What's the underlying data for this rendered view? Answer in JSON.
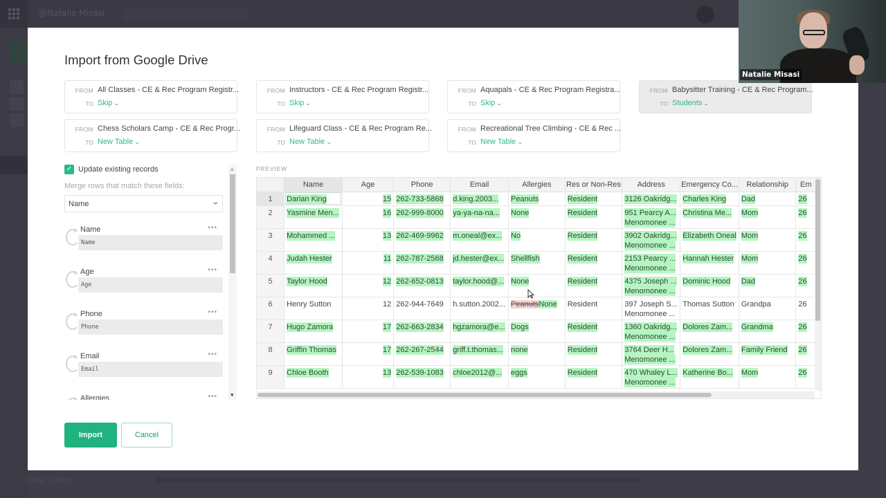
{
  "background": {
    "user_menu": "@Natalie Misasi",
    "help_link": "Help Center"
  },
  "modal": {
    "title": "Import from Google Drive",
    "from_label": "FROM",
    "to_label": "TO",
    "mappings": [
      {
        "from": "All Classes - CE & Rec Program Registr...",
        "to": "Skip",
        "active": false
      },
      {
        "from": "Instructors - CE & Rec Program Registr...",
        "to": "Skip",
        "active": false
      },
      {
        "from": "Aquapals - CE & Rec Program Registra...",
        "to": "Skip",
        "active": false
      },
      {
        "from": "Babysitter Training - CE & Rec Program...",
        "to": "Students",
        "active": true
      },
      {
        "from": "Chess Scholars Camp - CE & Rec Progr...",
        "to": "New Table",
        "active": false
      },
      {
        "from": "Lifeguard Class - CE & Rec Program Re...",
        "to": "New Table",
        "active": false
      },
      {
        "from": "Recreational Tree Climbing - CE & Rec ...",
        "to": "New Table",
        "active": false
      }
    ],
    "options": {
      "update_existing_label": "Update existing records",
      "update_existing_checked": true,
      "merge_label": "Merge rows that match these fields:",
      "merge_field": "Name"
    },
    "field_mappings": [
      {
        "name": "Name",
        "source": "Name"
      },
      {
        "name": "Age",
        "source": "Age"
      },
      {
        "name": "Phone",
        "source": "Phone"
      },
      {
        "name": "Email",
        "source": "Email"
      },
      {
        "name": "Allergies",
        "source": ""
      }
    ],
    "preview": {
      "label": "PREVIEW",
      "columns": [
        "Name",
        "Age",
        "Phone",
        "Email",
        "Allergies",
        "Res or Non-Res",
        "Address",
        "Emergency Co...",
        "Relationship",
        "Em"
      ],
      "rows": [
        {
          "n": "1",
          "name": "Darian King",
          "age": "15",
          "phone": "262-733-5868",
          "email": "d.king.2003...",
          "allergies": "Peanuts",
          "res": "Resident",
          "addr1": "3126 Oakridg...",
          "addr2": "",
          "emergency": "Charles King",
          "relationship": "Dad",
          "em": "26",
          "changed": true
        },
        {
          "n": "2",
          "name": "Yasmine Men...",
          "age": "16",
          "phone": "262-999-8000",
          "email": "ya-ya-na-na...",
          "allergies": "None",
          "res": "Resident",
          "addr1": "951 Pearcy A...",
          "addr2": "Menomonee ...",
          "emergency": "Christina Me...",
          "relationship": "Mom",
          "em": "26",
          "changed": true
        },
        {
          "n": "3",
          "name": "Mohammed ...",
          "age": "13",
          "phone": "262-469-9962",
          "email": "m.oneal@ex...",
          "allergies": "No",
          "res": "Resident",
          "addr1": "3902 Oakridg...",
          "addr2": "Menomonee ...",
          "emergency": "Elizabeth Oneal",
          "relationship": "Mom",
          "em": "26",
          "changed": true
        },
        {
          "n": "4",
          "name": "Judah Hester",
          "age": "11",
          "phone": "262-787-2568",
          "email": "jd.hester@ex...",
          "allergies": "Shellfish",
          "res": "Resident",
          "addr1": "2153 Pearcy ...",
          "addr2": "Menomonee ...",
          "emergency": "Hannah Hester",
          "relationship": "Mom",
          "em": "26",
          "changed": true
        },
        {
          "n": "5",
          "name": "Taylor Hood",
          "age": "12",
          "phone": "262-652-0813",
          "email": "taylor.hood@...",
          "allergies": "None",
          "res": "Resident",
          "addr1": "4375 Joseph ...",
          "addr2": "Menomonee ...",
          "emergency": "Dominic Hood",
          "relationship": "Dad",
          "em": "26",
          "changed": true
        },
        {
          "n": "6",
          "name": "Henry Sutton",
          "age": "12",
          "phone": "262-944-7649",
          "email": "h.sutton.2002...",
          "allergies_old": "Peanuts",
          "allergies": "None",
          "res": "Resident",
          "addr1": "397 Joseph S...",
          "addr2": "Menomonee ...",
          "emergency": "Thomas Sutton",
          "relationship": "Grandpa",
          "em": "26",
          "changed": false
        },
        {
          "n": "7",
          "name": "Hugo Zamora",
          "age": "17",
          "phone": "262-663-2834",
          "email": "hgzamora@e...",
          "allergies": "Dogs",
          "res": "Resident",
          "addr1": "1360 Oakridg...",
          "addr2": "Menomonee ...",
          "emergency": "Dolores Zam...",
          "relationship": "Grandma",
          "em": "26",
          "changed": true
        },
        {
          "n": "8",
          "name": "Griffin Thomas",
          "age": "17",
          "phone": "262-267-2544",
          "email": "griff.t.thomas...",
          "allergies": "none",
          "res": "Resident",
          "addr1": "3764 Deer H...",
          "addr2": "Menomonee ...",
          "emergency": "Dolores Zam...",
          "relationship": "Family Friend",
          "em": "26",
          "changed": true
        },
        {
          "n": "9",
          "name": "Chloe Booth",
          "age": "13",
          "phone": "262-539-1083",
          "email": "chloe2012@...",
          "allergies": "eggs",
          "res": "Resident",
          "addr1": "470 Whaley L...",
          "addr2": "Menomonee ...",
          "emergency": "Katherine Bo...",
          "relationship": "Mom",
          "em": "26",
          "changed": true
        }
      ]
    },
    "buttons": {
      "import": "Import",
      "cancel": "Cancel"
    }
  },
  "video_overlay": {
    "participant_name": "Natalie Misasi"
  },
  "colors": {
    "accent": "#20b27f",
    "link_green": "#2eb88a",
    "added_highlight": "#b5f5c2",
    "removed_highlight": "#f9d0d3"
  }
}
